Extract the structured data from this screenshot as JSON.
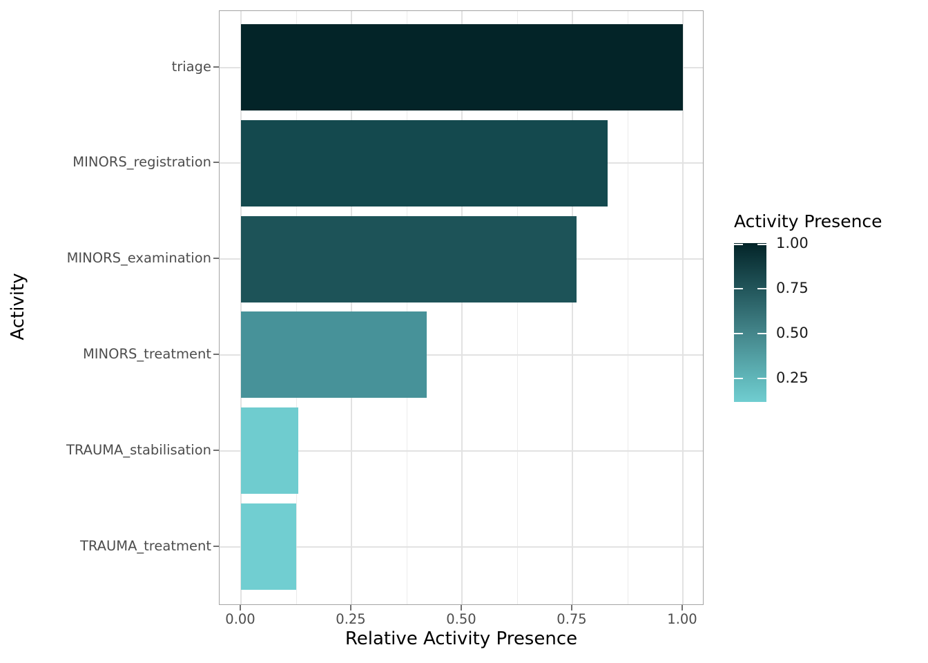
{
  "chart_data": {
    "type": "bar",
    "orientation": "horizontal",
    "title": "",
    "xlabel": "Relative Activity Presence",
    "ylabel": "Activity",
    "categories": [
      "triage",
      "MINORS_registration",
      "MINORS_examination",
      "MINORS_treatment",
      "TRAUMA_stabilisation",
      "TRAUMA_treatment"
    ],
    "values": [
      1.0,
      0.83,
      0.76,
      0.42,
      0.13,
      0.125
    ],
    "bar_colors": [
      "#032428",
      "#14494e",
      "#1d5358",
      "#479299",
      "#6fcccf",
      "#71ced1"
    ],
    "x_tick_labels": [
      "0.00",
      "0.25",
      "0.50",
      "0.75",
      "1.00"
    ],
    "x_tick_values": [
      0,
      0.25,
      0.5,
      0.75,
      1.0
    ],
    "x_minor_tick_values": [
      0.125,
      0.375,
      0.625,
      0.875
    ],
    "xlim": [
      -0.048,
      1.048
    ],
    "grid": true,
    "background": "#ffffff",
    "axis_text_color": "#4d4d4d",
    "axis_title_color": "#000000",
    "legend": {
      "title": "Activity Presence",
      "position": "right",
      "type": "colorbar",
      "tick_labels": [
        "1.00",
        "0.75",
        "0.50",
        "0.25"
      ],
      "tick_values": [
        1.0,
        0.75,
        0.5,
        0.25
      ],
      "range_low": 0.115,
      "range_high": 1.0,
      "color_high": "#032428",
      "color_low": "#70cdd0",
      "gradient_stops": [
        {
          "pos": 0.0,
          "color": "#032428"
        },
        {
          "pos": 0.28,
          "color": "#215459"
        },
        {
          "pos": 0.57,
          "color": "#44868b"
        },
        {
          "pos": 0.85,
          "color": "#60b6b9"
        },
        {
          "pos": 1.0,
          "color": "#70cdd0"
        }
      ]
    }
  }
}
